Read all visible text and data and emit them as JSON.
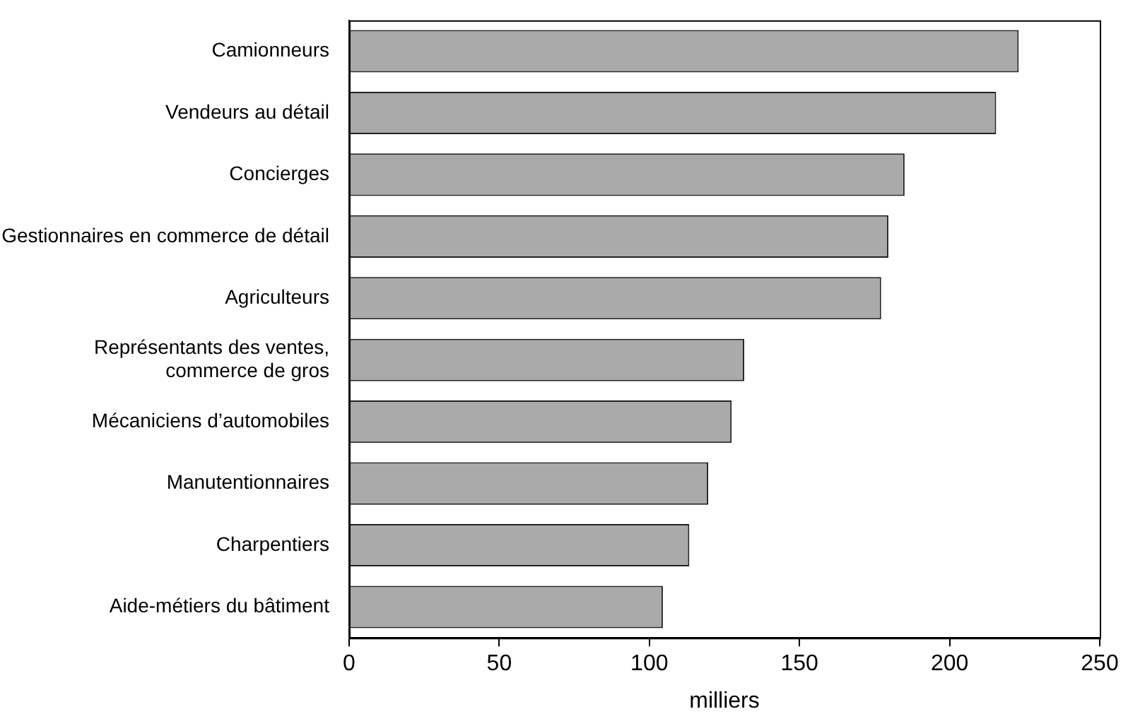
{
  "chart_data": {
    "type": "bar",
    "orientation": "horizontal",
    "xlabel": "milliers",
    "categories": [
      "Camionneurs",
      "Vendeurs au détail",
      "Concierges",
      "Gestionnaires en commerce de détail",
      "Agriculteurs",
      "Représentants des ventes, commerce de gros",
      "Mécaniciens d’automobiles",
      "Manutentionnaires",
      "Charpentiers",
      "Aide-métiers du bâtiment"
    ],
    "values": [
      223,
      215.5,
      185,
      179.6,
      177.2,
      131.6,
      127.4,
      119.6,
      113.3,
      104.5
    ],
    "color": "#aaaaaa",
    "xlim": [
      0,
      250
    ],
    "xticks": [
      0,
      50,
      100,
      150,
      200,
      250
    ],
    "grid": false,
    "legend": false
  }
}
